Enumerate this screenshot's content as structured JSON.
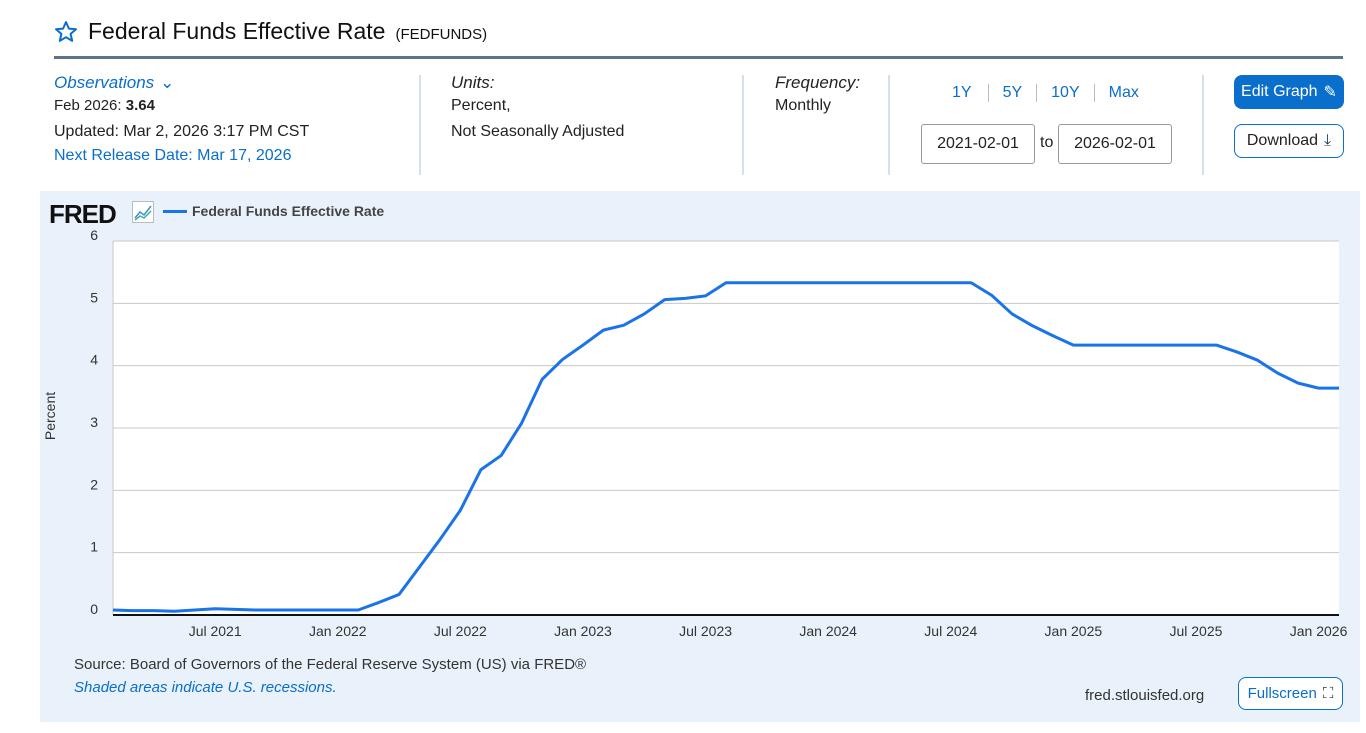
{
  "header": {
    "title": "Federal Funds Effective Rate",
    "code": "(FEDFUNDS)"
  },
  "observations": {
    "label": "Observations",
    "period": "Feb 2026:",
    "value": "3.64",
    "updated": "Updated: Mar 2, 2026 3:17 PM CST",
    "next_release": "Next Release Date: Mar 17, 2026"
  },
  "units": {
    "label": "Units:",
    "line1": "Percent,",
    "line2": "Not Seasonally Adjusted"
  },
  "frequency": {
    "label": "Frequency:",
    "value": "Monthly"
  },
  "range": {
    "buttons": [
      "1Y",
      "5Y",
      "10Y",
      "Max"
    ],
    "start": "2021-02-01",
    "to": "to",
    "end": "2026-02-01"
  },
  "actions": {
    "edit": "Edit Graph",
    "download": "Download",
    "fullscreen": "Fullscreen"
  },
  "footer": {
    "source": "Source: Board of Governors of the Federal Reserve System (US) via FRED®",
    "recessions": "Shaded areas indicate U.S. recessions.",
    "site": "fred.stlouisfed.org"
  },
  "logo": "FRED",
  "colors": {
    "line": "#1a73e8",
    "accent": "#0a6ecc"
  },
  "chart_data": {
    "type": "line",
    "title": "Federal Funds Effective Rate",
    "xlabel": "",
    "ylabel": "Percent",
    "ylim": [
      0,
      6
    ],
    "yticks": [
      "0",
      "1",
      "2",
      "3",
      "4",
      "5",
      "6"
    ],
    "xticks": [
      {
        "label": "Jul 2021",
        "m": 5
      },
      {
        "label": "Jan 2022",
        "m": 11
      },
      {
        "label": "Jul 2022",
        "m": 17
      },
      {
        "label": "Jan 2023",
        "m": 23
      },
      {
        "label": "Jul 2023",
        "m": 29
      },
      {
        "label": "Jan 2024",
        "m": 35
      },
      {
        "label": "Jul 2024",
        "m": 41
      },
      {
        "label": "Jan 2025",
        "m": 47
      },
      {
        "label": "Jul 2025",
        "m": 53
      },
      {
        "label": "Jan 2026",
        "m": 59
      }
    ],
    "start": "2021-02",
    "grid": true,
    "legend": "top-left",
    "series": [
      {
        "name": "Federal Funds Effective Rate",
        "values": [
          0.08,
          0.07,
          0.07,
          0.06,
          0.08,
          0.1,
          0.09,
          0.08,
          0.08,
          0.08,
          0.08,
          0.08,
          0.08,
          0.2,
          0.33,
          0.77,
          1.21,
          1.68,
          2.33,
          2.56,
          3.08,
          3.78,
          4.1,
          4.33,
          4.57,
          4.65,
          4.83,
          5.06,
          5.08,
          5.12,
          5.33,
          5.33,
          5.33,
          5.33,
          5.33,
          5.33,
          5.33,
          5.33,
          5.33,
          5.33,
          5.33,
          5.33,
          5.33,
          5.13,
          4.83,
          4.64,
          4.48,
          4.33,
          4.33,
          4.33,
          4.33,
          4.33,
          4.33,
          4.33,
          4.33,
          4.22,
          4.09,
          3.88,
          3.72,
          3.64,
          3.64
        ]
      }
    ]
  }
}
